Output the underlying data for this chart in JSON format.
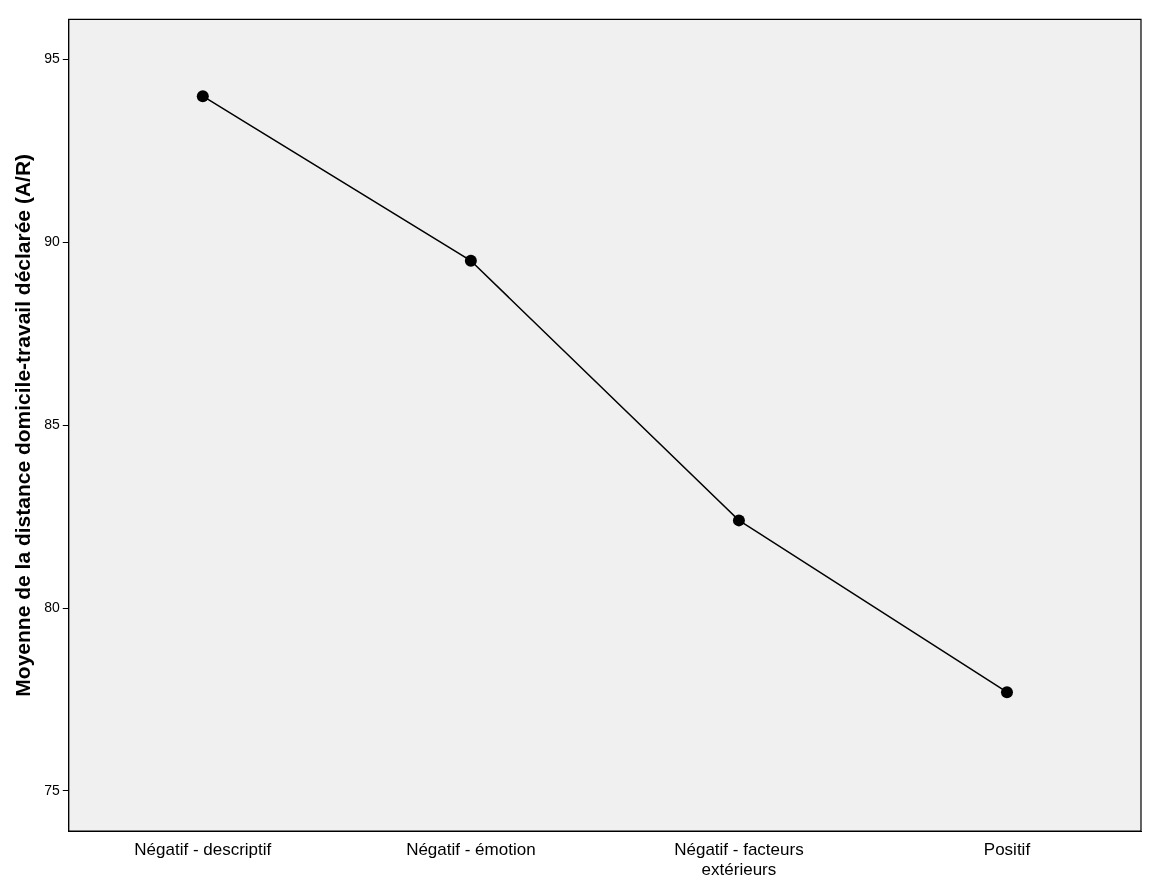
{
  "chart_data": {
    "type": "line",
    "ylabel": "Moyenne de la distance domicile-travail déclarée (A/R)",
    "categories": [
      "Négatif - descriptif",
      "Négatif - émotion",
      "Négatif - facteurs extérieurs",
      "Positif"
    ],
    "series": [
      {
        "color": "#000000",
        "values": [
          94.0,
          89.5,
          82.4,
          77.7
        ]
      }
    ],
    "ylim": [
      73.9,
      96.1
    ],
    "yticks": [
      75,
      80,
      85,
      90,
      95
    ],
    "grid": false,
    "legend": false,
    "marker": "circle",
    "line_style": "solid"
  }
}
